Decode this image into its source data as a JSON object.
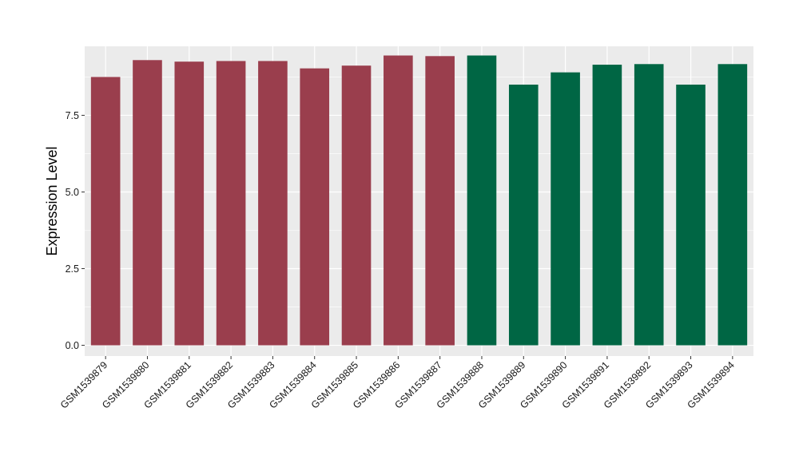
{
  "chart_data": {
    "type": "bar",
    "title": "",
    "xlabel": "",
    "ylabel": "Expression Level",
    "ylim": [
      -0.35,
      9.75
    ],
    "yticks": [
      0.0,
      2.5,
      5.0,
      7.5
    ],
    "ytick_labels": [
      "0.0",
      "2.5",
      "5.0",
      "7.5"
    ],
    "grid": true,
    "legend": "none",
    "categories": [
      "GSM1539879",
      "GSM1539880",
      "GSM1539881",
      "GSM1539882",
      "GSM1539883",
      "GSM1539884",
      "GSM1539885",
      "GSM1539886",
      "GSM1539887",
      "GSM1539888",
      "GSM1539889",
      "GSM1539890",
      "GSM1539891",
      "GSM1539892",
      "GSM1539893",
      "GSM1539894"
    ],
    "values": [
      8.75,
      9.3,
      9.25,
      9.27,
      9.27,
      9.03,
      9.12,
      9.45,
      9.43,
      9.45,
      8.5,
      8.9,
      9.15,
      9.17,
      8.5,
      9.17
    ],
    "bar_colors": [
      "#9a3e4d",
      "#9a3e4d",
      "#9a3e4d",
      "#9a3e4d",
      "#9a3e4d",
      "#9a3e4d",
      "#9a3e4d",
      "#9a3e4d",
      "#9a3e4d",
      "#006644",
      "#006644",
      "#006644",
      "#006644",
      "#006644",
      "#006644",
      "#006644"
    ],
    "panel_background": "#ebebeb",
    "grid_color": "#ffffff"
  }
}
